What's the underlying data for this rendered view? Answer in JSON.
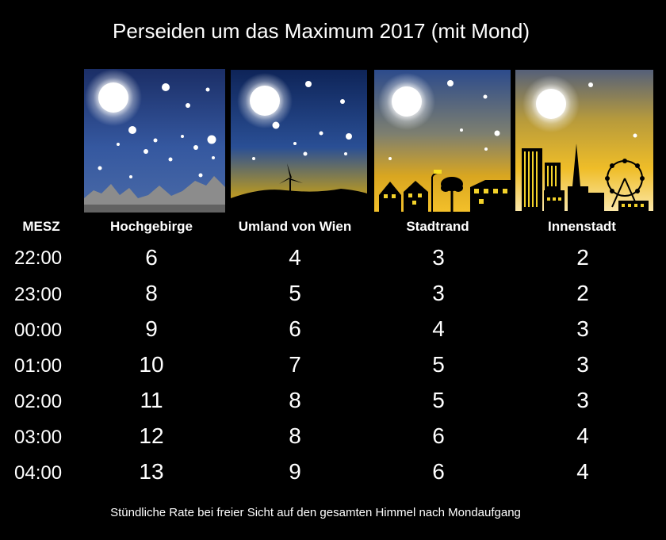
{
  "title": "Perseiden um das Maximum 2017 (mit Mond)",
  "columns": {
    "time": "MESZ",
    "c1": "Hochgebirge",
    "c2": "Umland von Wien",
    "c3": "Stadtrand",
    "c4": "Innenstadt"
  },
  "rows": [
    {
      "time": "22:00",
      "v": [
        "6",
        "4",
        "3",
        "2"
      ]
    },
    {
      "time": "23:00",
      "v": [
        "8",
        "5",
        "3",
        "2"
      ]
    },
    {
      "time": "00:00",
      "v": [
        "9",
        "6",
        "4",
        "3"
      ]
    },
    {
      "time": "01:00",
      "v": [
        "10",
        "7",
        "5",
        "3"
      ]
    },
    {
      "time": "02:00",
      "v": [
        "11",
        "8",
        "5",
        "3"
      ]
    },
    {
      "time": "03:00",
      "v": [
        "12",
        "8",
        "6",
        "4"
      ]
    },
    {
      "time": "04:00",
      "v": [
        "13",
        "9",
        "6",
        "4"
      ]
    }
  ],
  "footer": "Stündliche Rate bei freier Sicht auf den gesamten Himmel nach Mondaufgang",
  "icons": [
    "moon-icon",
    "star-icon",
    "mountain-icon",
    "wind-turbine-icon",
    "house-icon",
    "tree-icon",
    "street-lamp-icon",
    "skyscraper-icon",
    "tower-icon",
    "ferris-wheel-icon"
  ]
}
